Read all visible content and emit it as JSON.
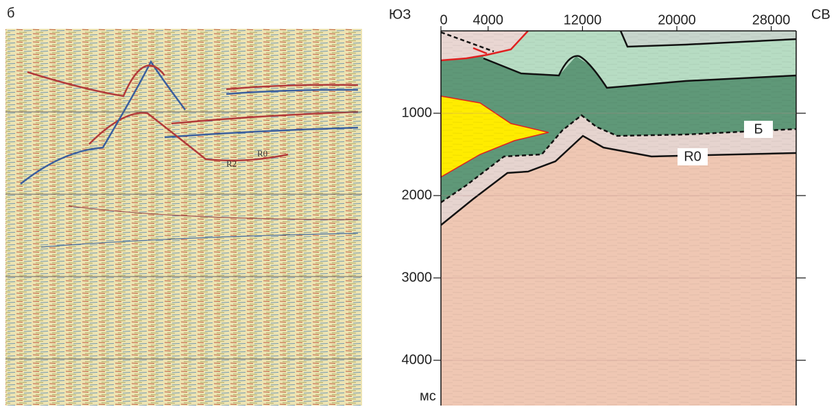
{
  "panel_label": "б",
  "seismic_section": {
    "labels": [
      "R0",
      "R2"
    ]
  },
  "interpretation": {
    "sw_label": "ЮЗ",
    "ne_label": "СВ",
    "xticks": [
      0,
      4000,
      12000,
      20000,
      28000
    ],
    "yticks": [
      1000,
      2000,
      3000,
      4000
    ],
    "y_unit": "мс",
    "horizons": [
      "Б",
      "R0"
    ]
  }
}
